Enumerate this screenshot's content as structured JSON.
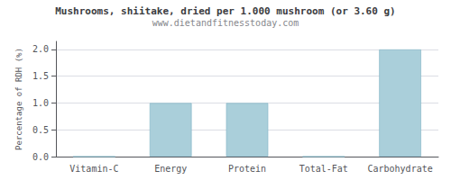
{
  "chart_data": {
    "type": "bar",
    "title": "Mushrooms, shiitake, dried per 1.000 mushroom (or 3.60 g)",
    "subtitle": "www.dietandfitnesstoday.com",
    "categories": [
      "Vitamin-C",
      "Energy",
      "Protein",
      "Total-Fat",
      "Carbohydrate"
    ],
    "values": [
      0.0,
      1.0,
      1.0,
      0.0,
      2.0
    ],
    "color": "#aacfda",
    "ylabel": "Percentage of RDH (%)",
    "ylim": [
      0,
      2.15
    ],
    "yticks": [
      {
        "value": 0,
        "label": "0.0"
      },
      0.5,
      {
        "value": 1,
        "label": "1.0"
      },
      1.5,
      {
        "value": 2,
        "label": "2.0"
      }
    ],
    "grid": true
  }
}
